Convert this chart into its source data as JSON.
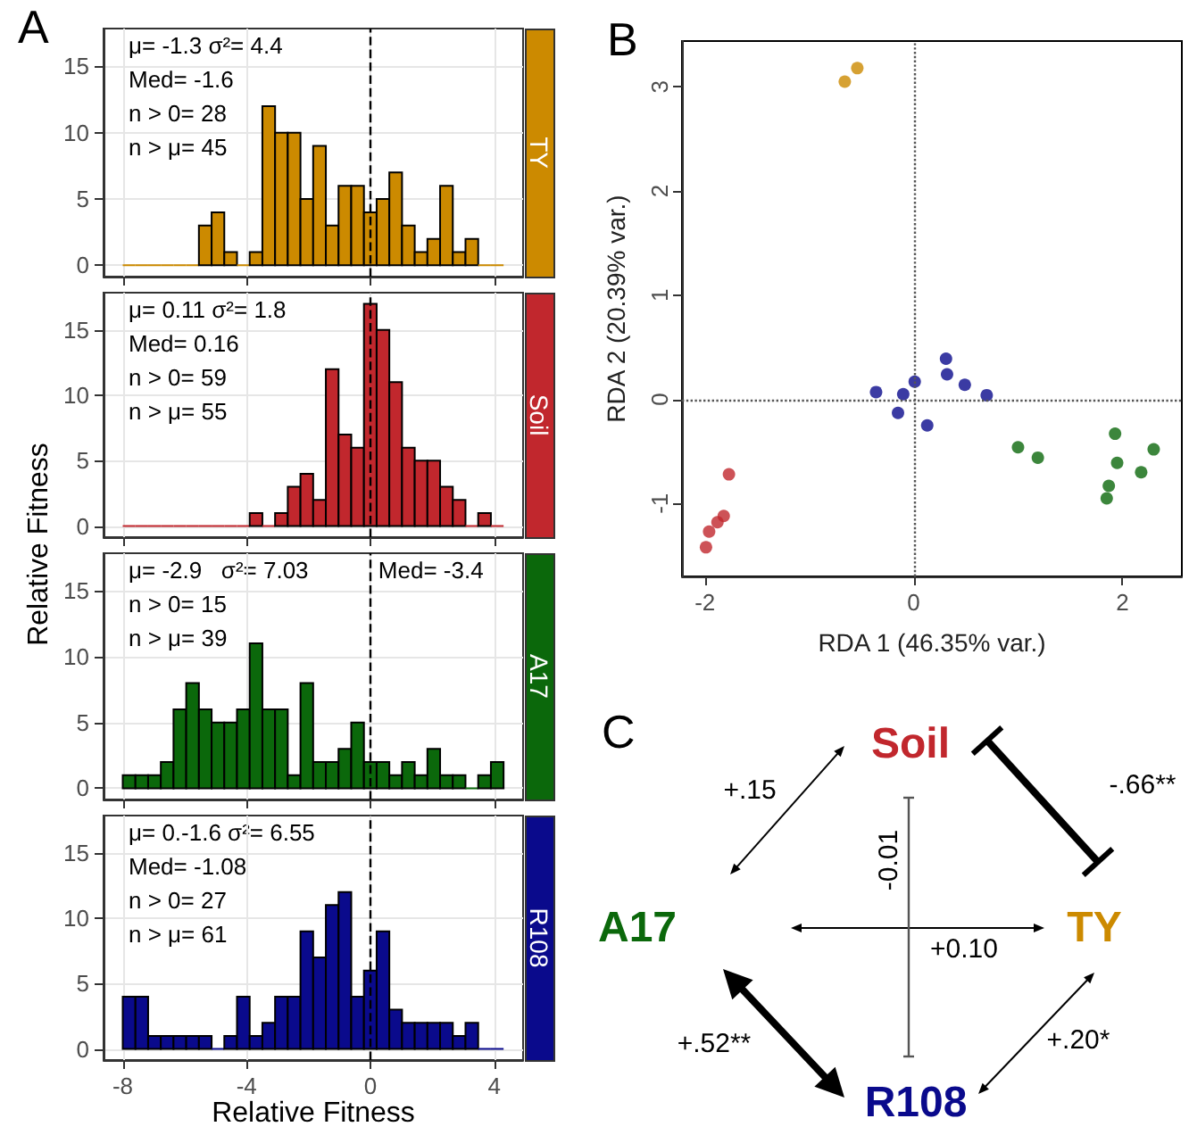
{
  "chart_data": [
    {
      "type": "histogram",
      "title": "TY",
      "color": "#cc8a00",
      "bins": [
        -8,
        -7.59,
        -7.18,
        -6.77,
        -6.36,
        -5.95,
        -5.54,
        -5.13,
        -4.72,
        -4.31,
        -3.9,
        -3.49,
        -3.08,
        -2.67,
        -2.26,
        -1.85,
        -1.44,
        -1.03,
        -0.62,
        -0.21,
        0.2,
        0.61,
        1.02,
        1.43,
        1.84,
        2.25,
        2.66,
        3.07,
        3.48,
        3.89,
        4.3
      ],
      "values": [
        0,
        0,
        0,
        0,
        0,
        0,
        3,
        4,
        1,
        0,
        1,
        12,
        10,
        10,
        5,
        9,
        3,
        6,
        6,
        4,
        5,
        7,
        3,
        1,
        2,
        6,
        1,
        2,
        0,
        0
      ],
      "xlim": [
        -8.62,
        4.93
      ],
      "xticks": [
        -8,
        -4,
        0,
        4
      ],
      "ylim": [
        -0.85,
        17.85
      ],
      "yticks": [
        0,
        5,
        10,
        15
      ],
      "grid": true,
      "tick_labels": "y",
      "ref_lines": [
        {
          "axis": "x",
          "value": 0,
          "line_style": "dashed"
        }
      ],
      "annotations": [
        "A",
        "μ= -1.3 σ²= 4.4",
        "Med= -1.6",
        "n > 0= 28",
        "n > μ= 45"
      ]
    },
    {
      "type": "histogram",
      "title": "Soil",
      "color": "#c1272d",
      "ylabel": "Relative Fitness",
      "bins": [
        -8,
        -7.59,
        -7.18,
        -6.77,
        -6.36,
        -5.95,
        -5.54,
        -5.13,
        -4.72,
        -4.31,
        -3.9,
        -3.49,
        -3.08,
        -2.67,
        -2.26,
        -1.85,
        -1.44,
        -1.03,
        -0.62,
        -0.21,
        0.2,
        0.61,
        1.02,
        1.43,
        1.84,
        2.25,
        2.66,
        3.07,
        3.48,
        3.89,
        4.3
      ],
      "values": [
        0,
        0,
        0,
        0,
        0,
        0,
        0,
        0,
        0,
        0,
        1,
        0,
        1,
        3,
        4,
        2,
        12,
        7,
        6,
        17,
        15,
        11,
        6,
        5,
        5,
        3,
        2,
        0,
        1,
        0
      ],
      "xlim": [
        -8.62,
        4.93
      ],
      "xticks": [
        -8,
        -4,
        0,
        4
      ],
      "ylim": [
        -0.85,
        17.85
      ],
      "yticks": [
        0,
        5,
        10,
        15
      ],
      "grid": true,
      "tick_labels": "y",
      "ref_lines": [
        {
          "axis": "x",
          "value": 0,
          "line_style": "dashed"
        }
      ],
      "annotations": [
        "μ= 0.11 σ²= 1.8",
        "Med= 0.16",
        "n > 0= 59",
        "n > μ= 55"
      ]
    },
    {
      "type": "histogram",
      "title": "A17",
      "color": "#0b680b",
      "bins": [
        -8,
        -7.59,
        -7.18,
        -6.77,
        -6.36,
        -5.95,
        -5.54,
        -5.13,
        -4.72,
        -4.31,
        -3.9,
        -3.49,
        -3.08,
        -2.67,
        -2.26,
        -1.85,
        -1.44,
        -1.03,
        -0.62,
        -0.21,
        0.2,
        0.61,
        1.02,
        1.43,
        1.84,
        2.25,
        2.66,
        3.07,
        3.48,
        3.89,
        4.3
      ],
      "values": [
        1,
        1,
        1,
        2,
        6,
        8,
        6,
        5,
        5,
        6,
        11,
        6,
        6,
        1,
        8,
        2,
        2,
        3,
        5,
        2,
        2,
        1,
        2,
        1,
        3,
        1,
        1,
        0,
        1,
        2
      ],
      "xlim": [
        -8.62,
        4.93
      ],
      "xticks": [
        -8,
        -4,
        0,
        4
      ],
      "ylim": [
        -0.85,
        17.85
      ],
      "yticks": [
        0,
        5,
        10,
        15
      ],
      "grid": true,
      "tick_labels": "y",
      "ref_lines": [
        {
          "axis": "x",
          "value": 0,
          "line_style": "dashed"
        }
      ],
      "annotations": [
        "μ= -2.9   σ²= 7.03",
        "Med= -3.4",
        "n > 0= 15",
        "n > μ= 39"
      ]
    },
    {
      "type": "histogram",
      "title": "R108",
      "color": "#0a0a8c",
      "xlabel": "Relative Fitness",
      "bins": [
        -8,
        -7.59,
        -7.18,
        -6.77,
        -6.36,
        -5.95,
        -5.54,
        -5.13,
        -4.72,
        -4.31,
        -3.9,
        -3.49,
        -3.08,
        -2.67,
        -2.26,
        -1.85,
        -1.44,
        -1.03,
        -0.62,
        -0.21,
        0.2,
        0.61,
        1.02,
        1.43,
        1.84,
        2.25,
        2.66,
        3.07,
        3.48,
        3.89,
        4.3
      ],
      "values": [
        4,
        4,
        1,
        1,
        1,
        1,
        1,
        0,
        1,
        4,
        1,
        2,
        4,
        4,
        9,
        7,
        11,
        12,
        4,
        6,
        9,
        3,
        2,
        2,
        2,
        2,
        1,
        2,
        0,
        0
      ],
      "xlim": [
        -8.62,
        4.93
      ],
      "xticks": [
        -8,
        -4,
        0,
        4
      ],
      "ylim": [
        -0.85,
        17.85
      ],
      "yticks": [
        0,
        5,
        10,
        15
      ],
      "grid": true,
      "ref_lines": [
        {
          "axis": "x",
          "value": 0,
          "line_style": "dashed"
        }
      ],
      "annotations": [
        "μ= 0.-1.6 σ²= 6.55",
        "Med= -1.08",
        "n > 0= 27",
        "n > μ= 61"
      ]
    },
    {
      "type": "scatter",
      "title": "B",
      "xlabel": "RDA 1 (46.35% var.)",
      "ylabel": "RDA 2 (20.39% var.)",
      "marker": "circle",
      "grid": false,
      "xlim": [
        -2.22,
        2.57
      ],
      "xticks": [
        -2,
        0,
        2
      ],
      "ylim": [
        -1.7,
        3.44
      ],
      "yticks": [
        -1,
        0,
        1,
        2,
        3
      ],
      "ref_lines": [
        {
          "axis": "x",
          "value": 0,
          "line_style": "dotted"
        },
        {
          "axis": "y",
          "value": 0,
          "line_style": "dotted"
        }
      ],
      "series": [
        {
          "color": "#cc8a00",
          "x": [
            -0.66,
            -0.54
          ],
          "values": [
            3.05,
            3.18
          ]
        },
        {
          "color": "#c1272d",
          "x": [
            -1.77,
            -1.82,
            -1.88,
            -1.96,
            -1.99
          ],
          "values": [
            -0.72,
            -1.12,
            -1.18,
            -1.27,
            -1.42
          ]
        },
        {
          "color": "#0b680b",
          "x": [
            1.0,
            1.19,
            1.93,
            2.3,
            2.18,
            1.95,
            1.87,
            1.85
          ],
          "values": [
            -0.46,
            -0.56,
            -0.33,
            -0.48,
            -0.7,
            -0.61,
            -0.83,
            -0.95
          ]
        },
        {
          "color": "#0a0a8c",
          "x": [
            -0.36,
            0.01,
            0.31,
            0.32,
            0.49,
            0.7,
            -0.1,
            -0.15,
            0.13
          ],
          "values": [
            0.07,
            0.17,
            0.39,
            0.24,
            0.14,
            0.04,
            0.05,
            -0.13,
            -0.25
          ]
        }
      ]
    },
    {
      "type": "other",
      "title": "C",
      "categories": [
        "Soil",
        "A17",
        "TY",
        "R108"
      ],
      "colors": [
        "#c1272d",
        "#0b680b",
        "#cc8a00",
        "#0a0a8c"
      ],
      "annotations": [
        "+.15",
        "-.66**",
        "-0.01",
        "+0.10",
        "+.52**",
        "+.20*"
      ]
    }
  ]
}
